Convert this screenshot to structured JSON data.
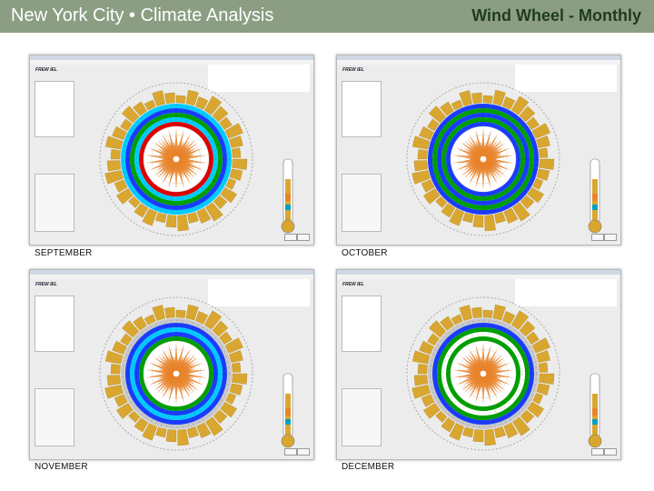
{
  "header": {
    "title": "New York City • Climate Analysis",
    "subtitle": "Wind Wheel - Monthly"
  },
  "panels": [
    {
      "caption": "SEPTEMBER",
      "rings": [
        "#00ccff",
        "#1a3cff",
        "#00a000",
        "#00ccff",
        "#e00000"
      ]
    },
    {
      "caption": "OCTOBER",
      "rings": [
        "#1a3cff",
        "#00a000",
        "#1a3cff",
        "#00a000",
        "#1a3cff"
      ]
    },
    {
      "caption": "NOVEMBER",
      "rings": [
        "#c8c8c8",
        "#1a3cff",
        "#00ccff",
        "#1a3cff",
        "#00a000"
      ]
    },
    {
      "caption": "DECEMBER",
      "rings": [
        "#c8c8c8",
        "#1a3cff",
        "#00a000",
        "#ffffff",
        "#00a000"
      ]
    }
  ],
  "colors": {
    "banner": "#8b9e83",
    "spikes": "#e8832a",
    "bars": "#d9a72f"
  }
}
